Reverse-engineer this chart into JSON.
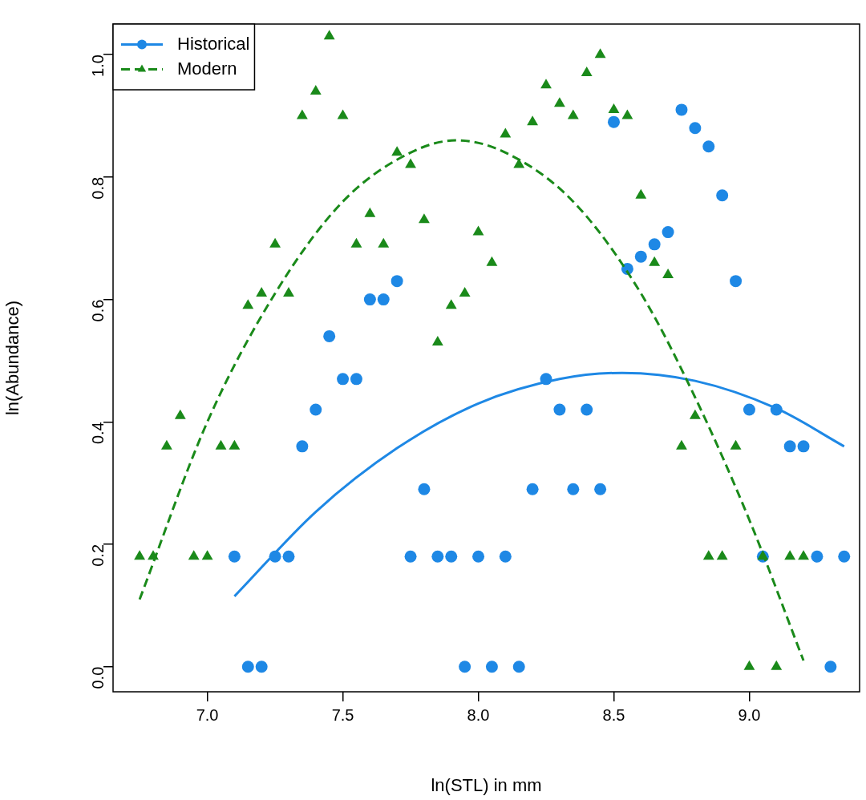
{
  "chart_data": {
    "type": "scatter",
    "xlabel": "ln(STL) in mm",
    "ylabel": "ln(Abundance)",
    "xlim": [
      6.652,
      9.407
    ],
    "xticks": [
      {
        "value": 7,
        "label": "7.0"
      },
      {
        "value": 7.5,
        "label": "7.5"
      },
      {
        "value": 8,
        "label": "8.0"
      },
      {
        "value": 8.5,
        "label": "8.5"
      },
      {
        "value": 9,
        "label": "9.0"
      }
    ],
    "ylim": [
      -0.041,
      1.05
    ],
    "yticks": [
      {
        "value": 0,
        "label": "0.0"
      },
      {
        "value": 0.2,
        "label": "0.2"
      },
      {
        "value": 0.4,
        "label": "0.4"
      },
      {
        "value": 0.6,
        "label": "0.6"
      },
      {
        "value": 0.8,
        "label": "0.8"
      },
      {
        "value": 1,
        "label": "1.0"
      }
    ],
    "grid": false,
    "legend": "top left",
    "series": [
      {
        "name": "Historical",
        "marker": "circle",
        "color": "#1e88e5",
        "x": [
          7.1,
          7.15,
          7.2,
          7.25,
          7.3,
          7.35,
          7.4,
          7.45,
          7.5,
          7.55,
          7.6,
          7.65,
          7.7,
          7.75,
          7.8,
          7.85,
          7.9,
          7.95,
          8.0,
          8.05,
          8.1,
          8.15,
          8.2,
          8.25,
          8.3,
          8.35,
          8.4,
          8.45,
          8.5,
          8.55,
          8.6,
          8.65,
          8.7,
          8.75,
          8.8,
          8.85,
          8.9,
          8.95,
          9.0,
          9.05,
          9.1,
          9.15,
          9.2,
          9.25,
          9.3,
          9.35
        ],
        "values": [
          0.18,
          0,
          0,
          0.18,
          0.18,
          0.36,
          0.42,
          0.54,
          0.47,
          0.47,
          0.6,
          0.6,
          0.63,
          0.18,
          0.29,
          0.18,
          0.18,
          0,
          0.18,
          0,
          0.18,
          0,
          0.29,
          0.47,
          0.42,
          0.29,
          0.42,
          0.29,
          0.89,
          0.65,
          0.67,
          0.69,
          0.71,
          0.91,
          0.88,
          0.85,
          0.77,
          0.63,
          0.42,
          0.18,
          0.42,
          0.36,
          0.36,
          0.18,
          0,
          0.18
        ]
      },
      {
        "name": "Modern",
        "marker": "triangle",
        "color": "#1a8a1a",
        "x": [
          6.75,
          6.8,
          6.85,
          6.9,
          6.95,
          7.0,
          7.05,
          7.1,
          7.15,
          7.2,
          7.25,
          7.3,
          7.35,
          7.4,
          7.45,
          7.5,
          7.55,
          7.6,
          7.65,
          7.7,
          7.75,
          7.8,
          7.85,
          7.9,
          7.95,
          8.0,
          8.05,
          8.1,
          8.15,
          8.2,
          8.25,
          8.3,
          8.35,
          8.4,
          8.45,
          8.5,
          8.55,
          8.6,
          8.65,
          8.7,
          8.75,
          8.8,
          8.85,
          8.9,
          8.95,
          9.0,
          9.05,
          9.1,
          9.15,
          9.2
        ],
        "values": [
          0.18,
          0.18,
          0.36,
          0.41,
          0.18,
          0.18,
          0.36,
          0.36,
          0.59,
          0.61,
          0.69,
          0.61,
          0.9,
          0.94,
          1.03,
          0.9,
          0.69,
          0.74,
          0.69,
          0.84,
          0.82,
          0.73,
          0.53,
          0.59,
          0.61,
          0.71,
          0.66,
          0.87,
          0.82,
          0.89,
          0.95,
          0.92,
          0.9,
          0.97,
          1.0,
          0.91,
          0.9,
          0.77,
          0.66,
          0.64,
          0.36,
          0.41,
          0.18,
          0.18,
          0.36,
          0,
          0.18,
          0,
          0.18,
          0.18
        ]
      },
      {
        "type": "line",
        "marker": "none",
        "line_style": "solid",
        "color": "#1e88e5",
        "x": [
          7.1,
          7.4,
          7.7,
          8.0,
          8.3,
          8.53,
          8.8,
          9.1,
          9.35
        ],
        "values": [
          0.115,
          0.253,
          0.357,
          0.43,
          0.47,
          0.48,
          0.467,
          0.422,
          0.36
        ]
      },
      {
        "type": "line",
        "marker": "none",
        "line_style": "dashed",
        "color": "#1a8a1a",
        "x": [
          6.75,
          7.0,
          7.25,
          7.5,
          7.75,
          7.92,
          8.1,
          8.35,
          8.6,
          8.8,
          9.0,
          9.2
        ],
        "values": [
          0.11,
          0.4,
          0.61,
          0.76,
          0.84,
          0.86,
          0.84,
          0.76,
          0.61,
          0.44,
          0.24,
          0.01
        ]
      }
    ]
  }
}
